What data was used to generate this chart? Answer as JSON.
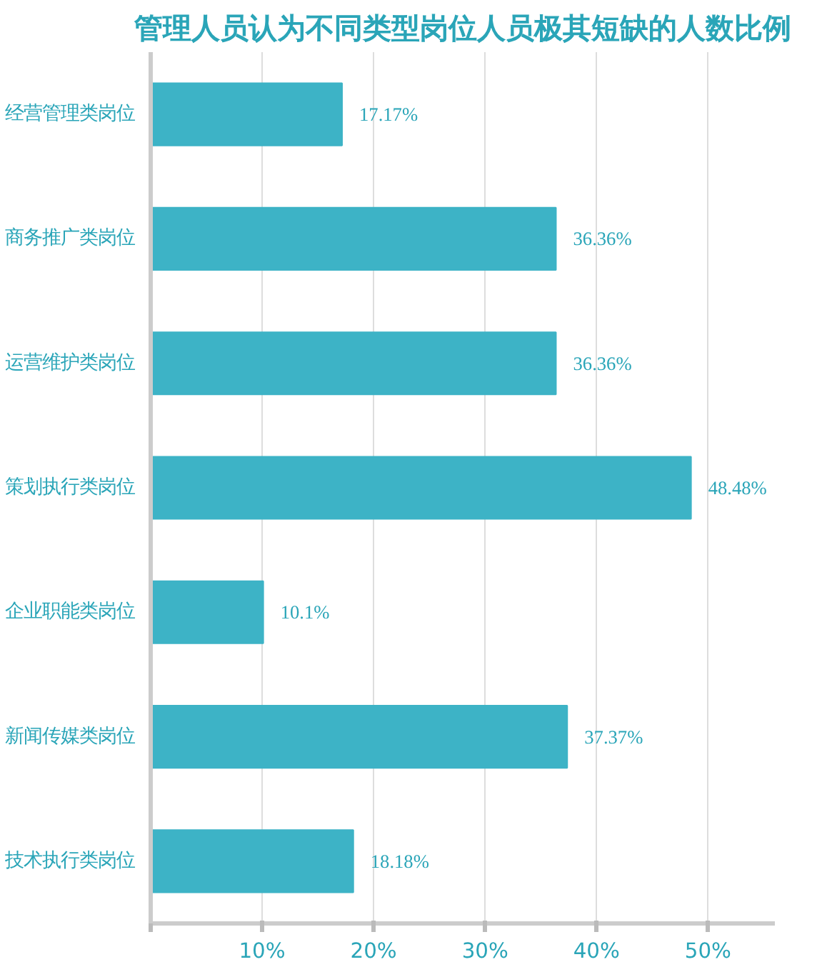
{
  "chart_data": {
    "type": "bar",
    "orientation": "horizontal",
    "title": "管理人员认为不同类型岗位人员极其短缺的人数比例",
    "categories": [
      "经营管理类岗位",
      "商务推广类岗位",
      "运营维护类岗位",
      "策划执行类岗位",
      "企业职能类岗位",
      "新闻传媒类岗位",
      "技术执行类岗位"
    ],
    "values": [
      17.17,
      36.36,
      36.36,
      48.48,
      10.1,
      37.37,
      18.18
    ],
    "value_labels": [
      "17.17%",
      "36.36%",
      "36.36%",
      "48.48%",
      "10.1%",
      "37.37%",
      "18.18%"
    ],
    "color": "#3db3c6",
    "xlim": [
      0,
      56
    ],
    "xticks": [
      {
        "value": 0,
        "label": null
      },
      {
        "value": 10,
        "label": "10%"
      },
      {
        "value": 20,
        "label": "20%"
      },
      {
        "value": 30,
        "label": "30%"
      },
      {
        "value": 40,
        "label": "40%"
      },
      {
        "value": 50,
        "label": "50%"
      }
    ],
    "grid": "x"
  }
}
